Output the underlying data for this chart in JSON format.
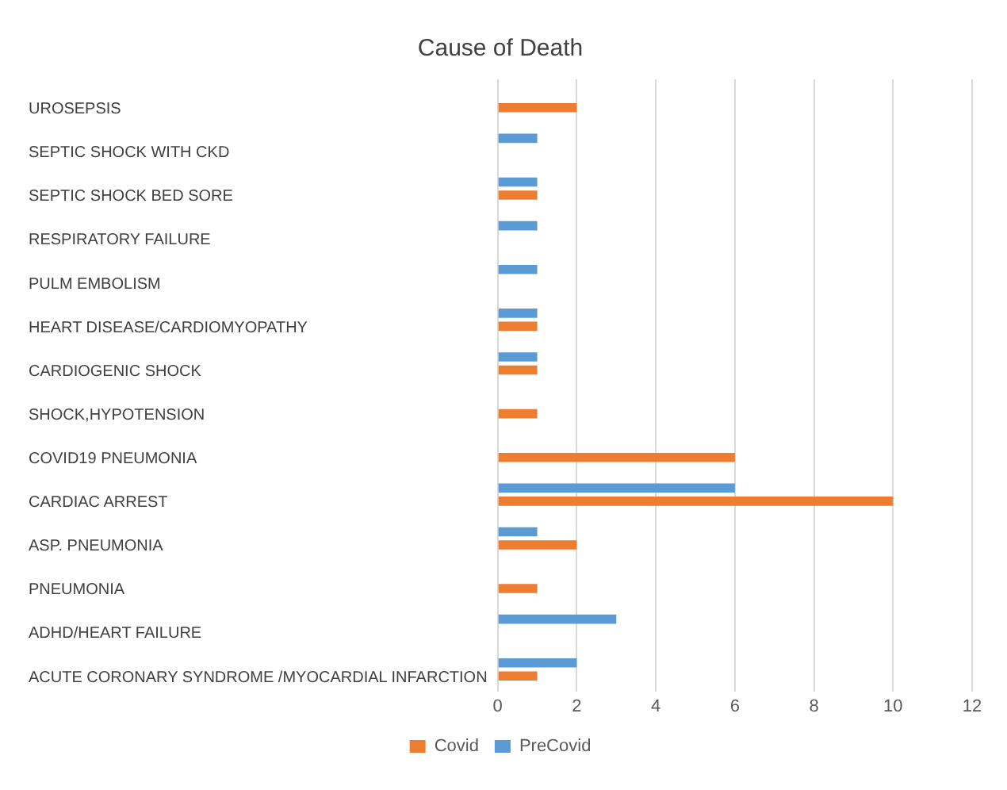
{
  "chart_data": {
    "type": "bar",
    "orientation": "horizontal",
    "title": "Cause of Death",
    "categories": [
      "UROSEPSIS",
      "SEPTIC SHOCK WITH CKD",
      "SEPTIC SHOCK BED SORE",
      "RESPIRATORY FAILURE",
      "PULM EMBOLISM",
      "HEART DISEASE/CARDIOMYOPATHY",
      "CARDIOGENIC SHOCK",
      "SHOCK,HYPOTENSION",
      "COVID19 PNEUMONIA",
      "CARDIAC ARREST",
      "ASP. PNEUMONIA",
      "PNEUMONIA",
      "ADHD/HEART FAILURE",
      "ACUTE CORONARY SYNDROME /MYOCARDIAL INFARCTION"
    ],
    "series": [
      {
        "name": "PreCovid",
        "color": "#5b9bd5",
        "values": [
          null,
          1,
          1,
          1,
          1,
          1,
          1,
          null,
          null,
          6,
          1,
          null,
          3,
          2
        ]
      },
      {
        "name": "Covid",
        "color": "#ed7d31",
        "values": [
          2,
          null,
          1,
          null,
          null,
          1,
          1,
          1,
          6,
          10,
          2,
          1,
          null,
          1
        ]
      }
    ],
    "xlim": [
      0,
      12
    ],
    "xticks": [
      0,
      2,
      4,
      6,
      8,
      10,
      12
    ],
    "grid": "x",
    "legend": "bottom"
  }
}
